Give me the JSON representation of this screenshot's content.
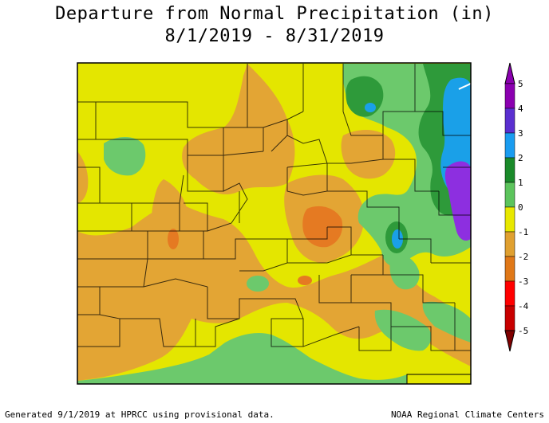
{
  "header": {
    "title": "Departure from Normal Precipitation (in)",
    "date_range": "8/1/2019 - 8/31/2019"
  },
  "legend": {
    "ticks": [
      "5",
      "4",
      "3",
      "2",
      "1",
      "0",
      "-1",
      "-2",
      "-3",
      "-4",
      "-5"
    ],
    "colors": [
      "#8b00b0",
      "#5a2fd0",
      "#1a9cf0",
      "#1a8a2a",
      "#5cc45c",
      "#e8e800",
      "#e0a030",
      "#e07818",
      "#ff0000",
      "#c80000",
      "#800000"
    ]
  },
  "map_colors": {
    "yellow": "#e4e600",
    "light_orange": "#e3a534",
    "dark_orange": "#e57a22",
    "light_green": "#6cc96c",
    "green": "#2e9a3a",
    "blue": "#1aa0e8",
    "purple": "#8d2fe0"
  },
  "footer": {
    "left": "Generated 9/1/2019 at HPRCC using provisional data.",
    "right": "NOAA Regional Climate Centers"
  }
}
